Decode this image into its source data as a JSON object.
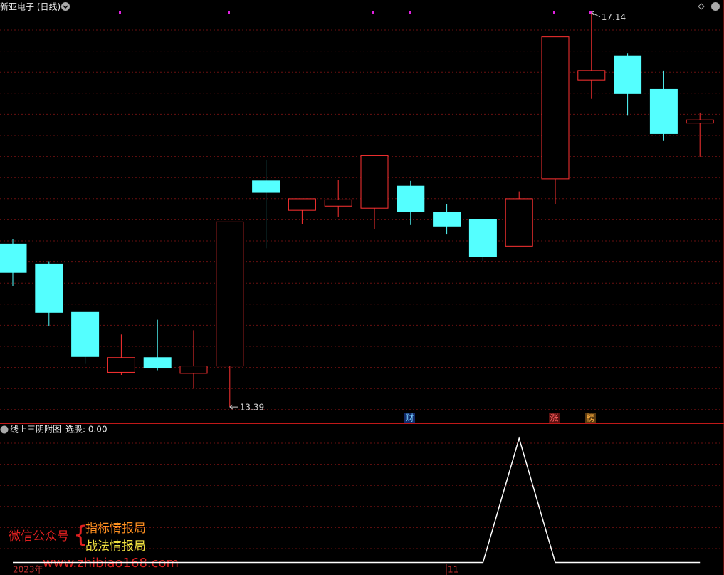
{
  "chart_data": [
    {
      "type": "candlestick",
      "title": "新亚电子 (日线)",
      "categories": [
        null,
        null,
        null,
        null,
        null,
        null,
        null,
        null,
        null,
        null,
        null,
        null,
        null,
        null,
        null,
        null,
        null,
        null,
        null,
        null
      ],
      "open": [
        14.94,
        14.75,
        14.29,
        13.72,
        13.86,
        13.71,
        13.78,
        15.54,
        15.26,
        15.3,
        15.28,
        15.49,
        15.24,
        15.17,
        14.92,
        15.56,
        16.5,
        16.73,
        16.41,
        16.09
      ],
      "high": [
        14.99,
        14.77,
        14.29,
        14.08,
        14.22,
        14.12,
        15.15,
        15.74,
        15.37,
        15.55,
        15.78,
        15.54,
        15.32,
        15.17,
        15.44,
        16.91,
        17.14,
        16.75,
        16.59,
        16.19
      ],
      "low": [
        14.54,
        14.16,
        13.8,
        13.69,
        13.74,
        13.57,
        13.39,
        14.9,
        15.13,
        15.2,
        15.08,
        15.12,
        15.03,
        14.78,
        14.92,
        15.32,
        16.32,
        16.16,
        15.92,
        15.77
      ],
      "close": [
        14.67,
        14.29,
        13.87,
        13.86,
        13.76,
        13.78,
        15.15,
        15.43,
        15.37,
        15.36,
        15.78,
        15.25,
        15.11,
        14.82,
        15.37,
        16.91,
        16.59,
        16.37,
        15.99,
        16.12
      ],
      "up_color": "#ff3232",
      "down_color": "#54ffff",
      "ylim": [
        13.235,
        17.26
      ],
      "events": [
        "财",
        "涨",
        "榜"
      ],
      "x_labels": [
        "2023年",
        "11"
      ]
    },
    {
      "type": "line",
      "title": "线上三阴附图",
      "subtitle": "选股: 0.00",
      "values": [
        0,
        0,
        0,
        0,
        0,
        0,
        0,
        0,
        0,
        0,
        0,
        0,
        0,
        0,
        1,
        0,
        0,
        0,
        0,
        0
      ],
      "color": "#ffffff",
      "ylim": [
        -0.1,
        1.11
      ]
    }
  ],
  "watermark": {
    "left": "微信公众号",
    "top": "指标情报局",
    "bottom": "战法情报局",
    "url": "www.zhibiao168.com"
  }
}
